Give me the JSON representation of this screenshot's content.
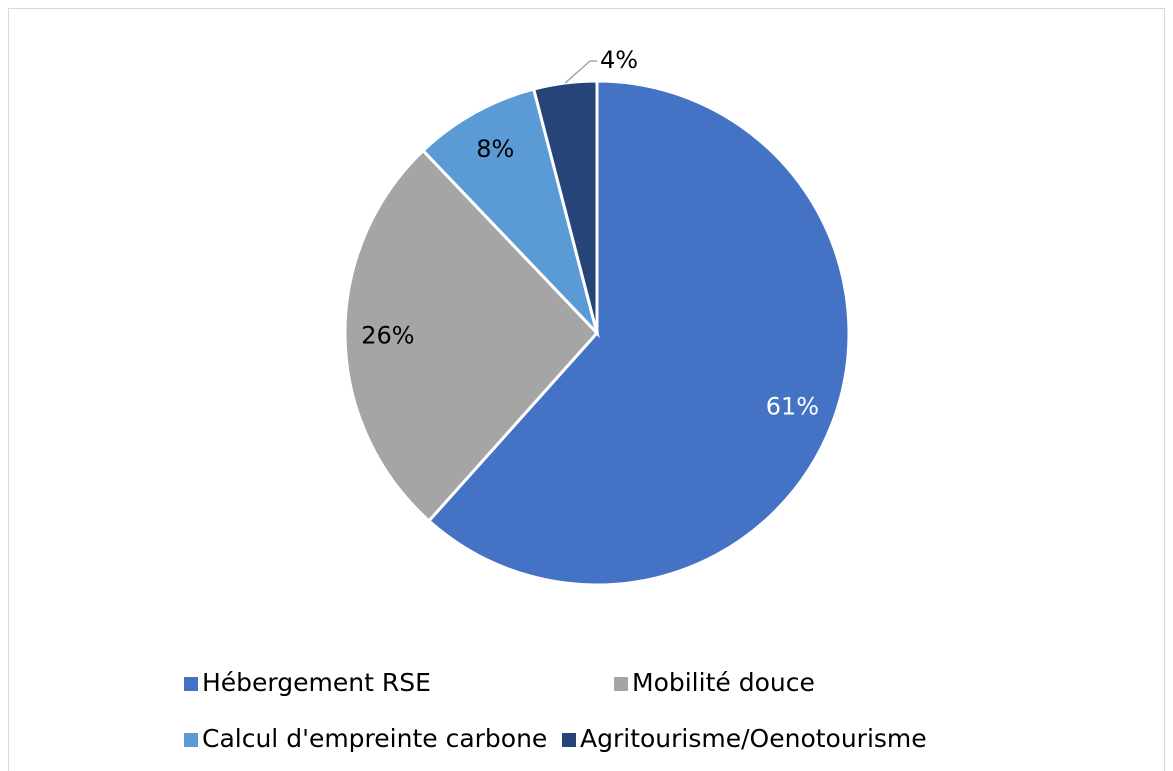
{
  "chart_data": {
    "type": "pie",
    "categories": [
      "Hébergement RSE",
      "Mobilité douce",
      "Calcul d'empreinte carbone",
      "Agritourisme/Oenotourisme"
    ],
    "values": [
      61,
      26,
      8,
      4
    ],
    "value_labels": [
      "61%",
      "26%",
      "8%",
      "4%"
    ],
    "colors": [
      "#4472c4",
      "#a5a5a5",
      "#5b9bd5",
      "#264478"
    ],
    "legend": "bottom"
  }
}
